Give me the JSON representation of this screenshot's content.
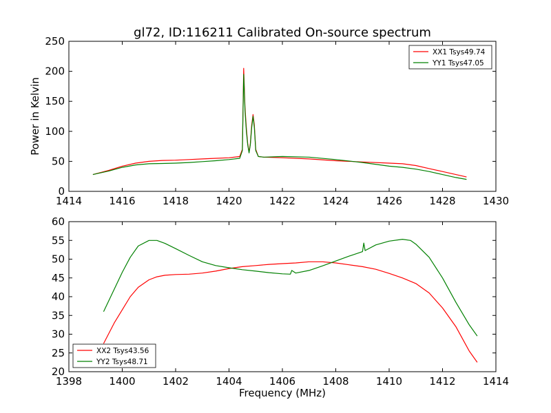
{
  "chart_data": [
    {
      "type": "line",
      "title": "gl72, ID:116211 Calibrated On-source spectrum",
      "xlabel": "",
      "ylabel": "Power in Kelvin",
      "xlim": [
        1414,
        1430
      ],
      "ylim": [
        0,
        250
      ],
      "xticks": [
        "1414",
        "1416",
        "1418",
        "1420",
        "1422",
        "1424",
        "1426",
        "1428",
        "1430"
      ],
      "yticks": [
        "0",
        "50",
        "100",
        "150",
        "200",
        "250"
      ],
      "legend_position": "top-right",
      "series": [
        {
          "name": "XX1 Tsys49.74",
          "color": "#ff0000",
          "x": [
            1414.9,
            1415.5,
            1416.0,
            1416.5,
            1417.0,
            1417.5,
            1418.0,
            1418.5,
            1419.0,
            1419.5,
            1420.0,
            1420.4,
            1420.5,
            1420.55,
            1420.6,
            1420.65,
            1420.7,
            1420.75,
            1420.8,
            1420.85,
            1420.9,
            1420.95,
            1421.0,
            1421.1,
            1421.3,
            1422.0,
            1423.0,
            1424.0,
            1425.0,
            1426.0,
            1426.5,
            1427.0,
            1427.5,
            1428.0,
            1428.5,
            1428.9
          ],
          "y": [
            28,
            35,
            42,
            47,
            50,
            51.5,
            52,
            53,
            54,
            55,
            56,
            58,
            70,
            205,
            140,
            105,
            80,
            65,
            80,
            110,
            128,
            110,
            70,
            58,
            57,
            56,
            54,
            51,
            49,
            47,
            46,
            43,
            38,
            33,
            28,
            24
          ]
        },
        {
          "name": "YY1 Tsys47.05",
          "color": "#008000",
          "x": [
            1414.9,
            1415.5,
            1416.0,
            1416.5,
            1417.0,
            1417.5,
            1418.0,
            1418.5,
            1419.0,
            1419.5,
            1420.0,
            1420.4,
            1420.5,
            1420.55,
            1420.6,
            1420.65,
            1420.7,
            1420.75,
            1420.8,
            1420.85,
            1420.9,
            1420.95,
            1421.0,
            1421.1,
            1421.3,
            1422.0,
            1423.0,
            1424.0,
            1425.0,
            1426.0,
            1426.5,
            1427.0,
            1427.5,
            1428.0,
            1428.5,
            1428.9
          ],
          "y": [
            28,
            34,
            40,
            44,
            46,
            46.5,
            47,
            48,
            49.5,
            51,
            53,
            55,
            68,
            195,
            135,
            100,
            78,
            64,
            78,
            106,
            125,
            106,
            68,
            58,
            57,
            58,
            57,
            53,
            48,
            42,
            40,
            37,
            33,
            28,
            23,
            20
          ]
        }
      ]
    },
    {
      "type": "line",
      "title": "",
      "xlabel": "Frequency (MHz)",
      "ylabel": "",
      "xlim": [
        1398,
        1414
      ],
      "ylim": [
        20,
        60
      ],
      "xticks": [
        "1398",
        "1400",
        "1402",
        "1404",
        "1406",
        "1408",
        "1410",
        "1412",
        "1414"
      ],
      "yticks": [
        "20",
        "25",
        "30",
        "35",
        "40",
        "45",
        "50",
        "55",
        "60"
      ],
      "legend_position": "bottom-left",
      "series": [
        {
          "name": "XX2 Tsys43.56",
          "color": "#ff0000",
          "x": [
            1399.3,
            1399.7,
            1400.0,
            1400.3,
            1400.6,
            1401.0,
            1401.3,
            1401.6,
            1402.0,
            1402.5,
            1403.0,
            1403.5,
            1404.0,
            1404.5,
            1405.0,
            1405.5,
            1406.0,
            1406.5,
            1407.0,
            1407.5,
            1408.0,
            1408.5,
            1409.0,
            1409.5,
            1410.0,
            1410.5,
            1411.0,
            1411.5,
            1412.0,
            1412.5,
            1413.0,
            1413.3
          ],
          "y": [
            27.5,
            33,
            36.5,
            40,
            42.5,
            44.5,
            45.3,
            45.7,
            45.9,
            46.0,
            46.3,
            46.8,
            47.5,
            48.0,
            48.3,
            48.6,
            48.8,
            49.0,
            49.3,
            49.3,
            49.0,
            48.5,
            48.0,
            47.3,
            46.2,
            45.0,
            43.5,
            41.0,
            37.0,
            32.0,
            25.5,
            22.5
          ]
        },
        {
          "name": "YY2 Tsys48.71",
          "color": "#008000",
          "x": [
            1399.3,
            1399.7,
            1400.0,
            1400.3,
            1400.6,
            1401.0,
            1401.3,
            1401.6,
            1402.0,
            1402.5,
            1403.0,
            1403.5,
            1404.0,
            1404.5,
            1405.0,
            1405.5,
            1406.0,
            1406.3,
            1406.35,
            1406.5,
            1407.0,
            1407.5,
            1408.0,
            1408.5,
            1409.0,
            1409.05,
            1409.1,
            1409.5,
            1410.0,
            1410.5,
            1410.8,
            1411.0,
            1411.5,
            1412.0,
            1412.5,
            1413.0,
            1413.3
          ],
          "y": [
            36,
            42,
            46.5,
            50.5,
            53.5,
            55.0,
            55.0,
            54.2,
            52.8,
            51.0,
            49.3,
            48.3,
            47.7,
            47.2,
            46.8,
            46.4,
            46.1,
            46.0,
            47.0,
            46.3,
            47.0,
            48.2,
            49.5,
            50.8,
            52.0,
            54.3,
            52.3,
            53.8,
            54.8,
            55.3,
            55.0,
            54.0,
            50.5,
            45.0,
            38.5,
            32.5,
            29.5
          ]
        }
      ]
    }
  ]
}
